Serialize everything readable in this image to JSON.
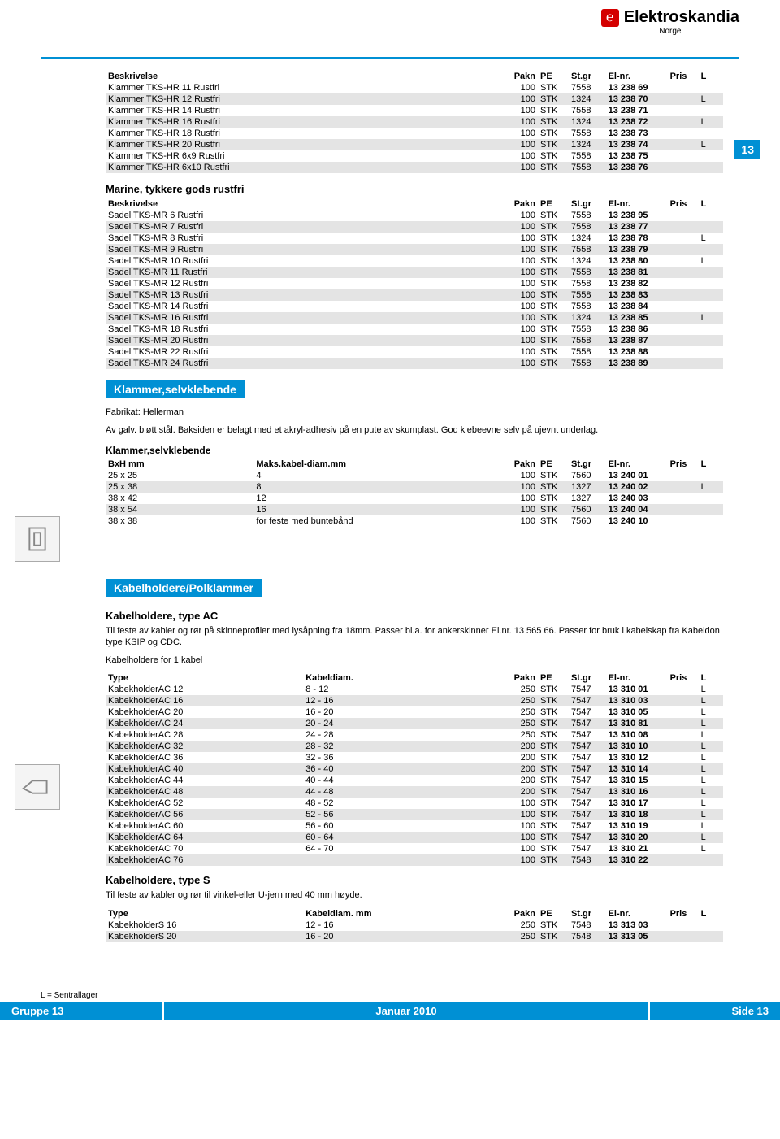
{
  "brand": {
    "name": "Elektroskandia",
    "sub": "Norge",
    "logo_bg": "#d40000"
  },
  "colors": {
    "blue": "#0090d4",
    "shade": "#e4e4e4"
  },
  "page_tab": "13",
  "headers": {
    "desc": "Beskrivelse",
    "pakn": "Pakn",
    "pe": "PE",
    "stgr": "St.gr",
    "elnr": "El-nr.",
    "pris": "Pris",
    "l": "L",
    "bxh": "BxH mm",
    "maks": "Maks.kabel-diam.mm",
    "type": "Type",
    "kabeldiam": "Kabeldiam.",
    "kabeldiam_mm": "Kabeldiam. mm"
  },
  "table1": {
    "rows": [
      {
        "d": "Klammer TKS-HR 11 Rustfri",
        "pakn": "100",
        "pe": "STK",
        "st": "7558",
        "el": "13 238 69",
        "l": "",
        "shade": false
      },
      {
        "d": "Klammer TKS-HR 12 Rustfri",
        "pakn": "100",
        "pe": "STK",
        "st": "1324",
        "el": "13 238 70",
        "l": "L",
        "shade": true
      },
      {
        "d": "Klammer TKS-HR 14 Rustfri",
        "pakn": "100",
        "pe": "STK",
        "st": "7558",
        "el": "13 238 71",
        "l": "",
        "shade": false
      },
      {
        "d": "Klammer TKS-HR 16 Rustfri",
        "pakn": "100",
        "pe": "STK",
        "st": "1324",
        "el": "13 238 72",
        "l": "L",
        "shade": true
      },
      {
        "d": "Klammer TKS-HR 18 Rustfri",
        "pakn": "100",
        "pe": "STK",
        "st": "7558",
        "el": "13 238 73",
        "l": "",
        "shade": false
      },
      {
        "d": "Klammer TKS-HR 20 Rustfri",
        "pakn": "100",
        "pe": "STK",
        "st": "1324",
        "el": "13 238 74",
        "l": "L",
        "shade": true
      },
      {
        "d": "Klammer TKS-HR 6x9 Rustfri",
        "pakn": "100",
        "pe": "STK",
        "st": "7558",
        "el": "13 238 75",
        "l": "",
        "shade": false
      },
      {
        "d": "Klammer TKS-HR 6x10 Rustfri",
        "pakn": "100",
        "pe": "STK",
        "st": "7558",
        "el": "13 238 76",
        "l": "",
        "shade": true
      }
    ]
  },
  "section_marine": "Marine, tykkere gods rustfri",
  "table2": {
    "rows": [
      {
        "d": "Sadel TKS-MR 6 Rustfri",
        "pakn": "100",
        "pe": "STK",
        "st": "7558",
        "el": "13 238 95",
        "l": "",
        "shade": false
      },
      {
        "d": "Sadel TKS-MR 7 Rustfri",
        "pakn": "100",
        "pe": "STK",
        "st": "7558",
        "el": "13 238 77",
        "l": "",
        "shade": true
      },
      {
        "d": "Sadel TKS-MR 8 Rustfri",
        "pakn": "100",
        "pe": "STK",
        "st": "1324",
        "el": "13 238 78",
        "l": "L",
        "shade": false
      },
      {
        "d": "Sadel TKS-MR 9 Rustfri",
        "pakn": "100",
        "pe": "STK",
        "st": "7558",
        "el": "13 238 79",
        "l": "",
        "shade": true
      },
      {
        "d": "Sadel TKS-MR 10 Rustfri",
        "pakn": "100",
        "pe": "STK",
        "st": "1324",
        "el": "13 238 80",
        "l": "L",
        "shade": false
      },
      {
        "d": "Sadel TKS-MR 11 Rustfri",
        "pakn": "100",
        "pe": "STK",
        "st": "7558",
        "el": "13 238 81",
        "l": "",
        "shade": true
      },
      {
        "d": "Sadel TKS-MR 12 Rustfri",
        "pakn": "100",
        "pe": "STK",
        "st": "7558",
        "el": "13 238 82",
        "l": "",
        "shade": false
      },
      {
        "d": "Sadel TKS-MR 13 Rustfri",
        "pakn": "100",
        "pe": "STK",
        "st": "7558",
        "el": "13 238 83",
        "l": "",
        "shade": true
      },
      {
        "d": "Sadel TKS-MR 14 Rustfri",
        "pakn": "100",
        "pe": "STK",
        "st": "7558",
        "el": "13 238 84",
        "l": "",
        "shade": false
      },
      {
        "d": "Sadel TKS-MR 16 Rustfri",
        "pakn": "100",
        "pe": "STK",
        "st": "1324",
        "el": "13 238 85",
        "l": "L",
        "shade": true
      },
      {
        "d": "Sadel TKS-MR 18 Rustfri",
        "pakn": "100",
        "pe": "STK",
        "st": "7558",
        "el": "13 238 86",
        "l": "",
        "shade": false
      },
      {
        "d": "Sadel TKS-MR 20 Rustfri",
        "pakn": "100",
        "pe": "STK",
        "st": "7558",
        "el": "13 238 87",
        "l": "",
        "shade": true
      },
      {
        "d": "Sadel TKS-MR 22 Rustfri",
        "pakn": "100",
        "pe": "STK",
        "st": "7558",
        "el": "13 238 88",
        "l": "",
        "shade": false
      },
      {
        "d": "Sadel TKS-MR 24 Rustfri",
        "pakn": "100",
        "pe": "STK",
        "st": "7558",
        "el": "13 238 89",
        "l": "",
        "shade": true
      }
    ]
  },
  "bar_klammer": "Klammer,selvklebende",
  "klammer_meta1": "Fabrikat: Hellerman",
  "klammer_meta2": "Av galv. bløtt stål. Baksiden er belagt med et akryl-adhesiv på en pute av skumplast. God klebeevne selv på ujevnt underlag.",
  "sub_klammer": "Klammer,selvklebende",
  "table3": {
    "rows": [
      {
        "b": "25 x 25",
        "m": "4",
        "pakn": "100",
        "pe": "STK",
        "st": "7560",
        "el": "13 240 01",
        "l": "",
        "shade": false
      },
      {
        "b": "25 x 38",
        "m": "8",
        "pakn": "100",
        "pe": "STK",
        "st": "1327",
        "el": "13 240 02",
        "l": "L",
        "shade": true
      },
      {
        "b": "38 x 42",
        "m": "12",
        "pakn": "100",
        "pe": "STK",
        "st": "1327",
        "el": "13 240 03",
        "l": "",
        "shade": false
      },
      {
        "b": "38 x 54",
        "m": "16",
        "pakn": "100",
        "pe": "STK",
        "st": "7560",
        "el": "13 240 04",
        "l": "",
        "shade": true
      },
      {
        "b": "38 x 38",
        "m": "for feste med buntebånd",
        "pakn": "100",
        "pe": "STK",
        "st": "7560",
        "el": "13 240 10",
        "l": "",
        "shade": false
      }
    ]
  },
  "bar_kabel": "Kabelholdere/Polklammer",
  "sub_kabel_ac": "Kabelholdere, type AC",
  "kabel_ac_desc": "Til feste av kabler og rør på skinneprofiler med lysåpning fra 18mm. Passer bl.a. for ankerskinner El.nr. 13 565 66. Passer for bruk i kabelskap fra Kabeldon type KSIP og CDC.",
  "kabel_ac_sub": "Kabelholdere for 1 kabel",
  "table4": {
    "rows": [
      {
        "t": "KabekholderAC 12",
        "k": "8 - 12",
        "pakn": "250",
        "pe": "STK",
        "st": "7547",
        "el": "13 310 01",
        "l": "L",
        "shade": false
      },
      {
        "t": "KabekholderAC 16",
        "k": "12 - 16",
        "pakn": "250",
        "pe": "STK",
        "st": "7547",
        "el": "13 310 03",
        "l": "L",
        "shade": true
      },
      {
        "t": "KabekholderAC 20",
        "k": "16 - 20",
        "pakn": "250",
        "pe": "STK",
        "st": "7547",
        "el": "13 310 05",
        "l": "L",
        "shade": false
      },
      {
        "t": "KabekholderAC 24",
        "k": "20 - 24",
        "pakn": "250",
        "pe": "STK",
        "st": "7547",
        "el": "13 310 81",
        "l": "L",
        "shade": true
      },
      {
        "t": "KabekholderAC 28",
        "k": "24 - 28",
        "pakn": "250",
        "pe": "STK",
        "st": "7547",
        "el": "13 310 08",
        "l": "L",
        "shade": false
      },
      {
        "t": "KabekholderAC 32",
        "k": "28 - 32",
        "pakn": "200",
        "pe": "STK",
        "st": "7547",
        "el": "13 310 10",
        "l": "L",
        "shade": true
      },
      {
        "t": "KabekholderAC 36",
        "k": "32 - 36",
        "pakn": "200",
        "pe": "STK",
        "st": "7547",
        "el": "13 310 12",
        "l": "L",
        "shade": false
      },
      {
        "t": "KabekholderAC 40",
        "k": "36 - 40",
        "pakn": "200",
        "pe": "STK",
        "st": "7547",
        "el": "13 310 14",
        "l": "L",
        "shade": true
      },
      {
        "t": "KabekholderAC 44",
        "k": "40 - 44",
        "pakn": "200",
        "pe": "STK",
        "st": "7547",
        "el": "13 310 15",
        "l": "L",
        "shade": false
      },
      {
        "t": "KabekholderAC 48",
        "k": "44 - 48",
        "pakn": "200",
        "pe": "STK",
        "st": "7547",
        "el": "13 310 16",
        "l": "L",
        "shade": true
      },
      {
        "t": "KabekholderAC 52",
        "k": "48 - 52",
        "pakn": "100",
        "pe": "STK",
        "st": "7547",
        "el": "13 310 17",
        "l": "L",
        "shade": false
      },
      {
        "t": "KabekholderAC 56",
        "k": "52 - 56",
        "pakn": "100",
        "pe": "STK",
        "st": "7547",
        "el": "13 310 18",
        "l": "L",
        "shade": true
      },
      {
        "t": "KabekholderAC 60",
        "k": "56 - 60",
        "pakn": "100",
        "pe": "STK",
        "st": "7547",
        "el": "13 310 19",
        "l": "L",
        "shade": false
      },
      {
        "t": "KabekholderAC 64",
        "k": "60 - 64",
        "pakn": "100",
        "pe": "STK",
        "st": "7547",
        "el": "13 310 20",
        "l": "L",
        "shade": true
      },
      {
        "t": "KabekholderAC 70",
        "k": "64 - 70",
        "pakn": "100",
        "pe": "STK",
        "st": "7547",
        "el": "13 310 21",
        "l": "L",
        "shade": false
      },
      {
        "t": "KabekholderAC 76",
        "k": "",
        "pakn": "100",
        "pe": "STK",
        "st": "7548",
        "el": "13 310 22",
        "l": "",
        "shade": true
      }
    ]
  },
  "sub_kabel_s": "Kabelholdere, type S",
  "kabel_s_desc": "Til feste av kabler og rør til vinkel-eller U-jern med 40 mm høyde.",
  "table5": {
    "rows": [
      {
        "t": "KabekholderS 16",
        "k": "12 - 16",
        "pakn": "250",
        "pe": "STK",
        "st": "7548",
        "el": "13 313 03",
        "l": "",
        "shade": false
      },
      {
        "t": "KabekholderS 20",
        "k": "16 - 20",
        "pakn": "250",
        "pe": "STK",
        "st": "7548",
        "el": "13 313 05",
        "l": "",
        "shade": true
      }
    ]
  },
  "footer": {
    "note": "L = Sentrallager",
    "left": "Gruppe 13",
    "mid": "Januar 2010",
    "right": "Side  13"
  }
}
